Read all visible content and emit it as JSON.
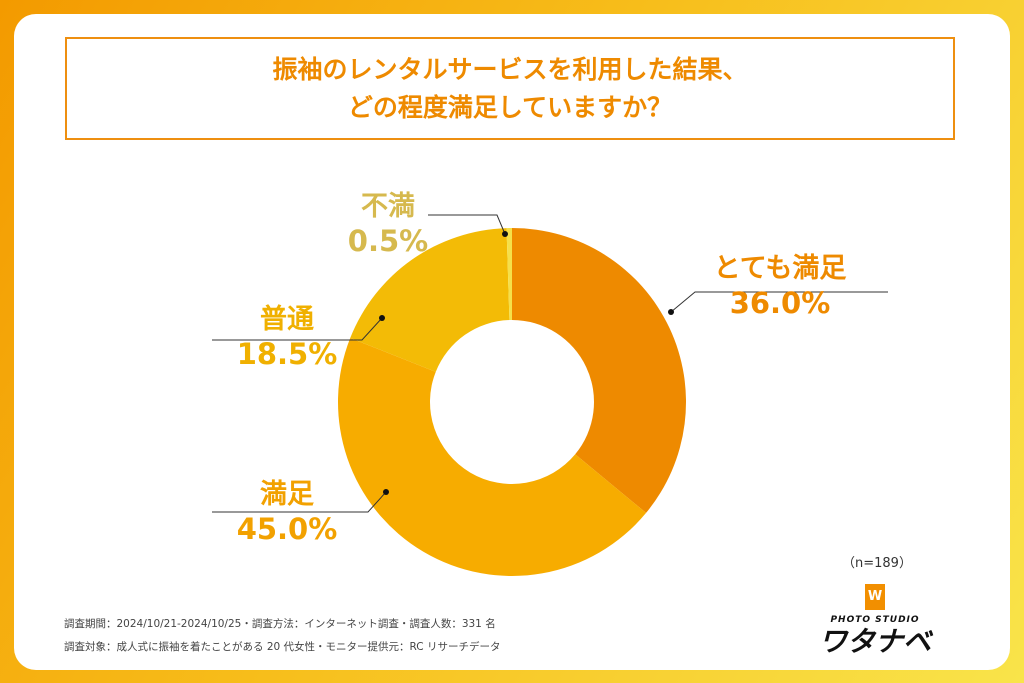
{
  "title_lines": [
    "振袖のレンタルサービスを利用した結果、",
    "どの程度満足していますか？"
  ],
  "chart_data": {
    "type": "pie",
    "donut": true,
    "title": "振袖のレンタルサービスを利用した結果、どの程度満足していますか？",
    "categories": [
      "とても満足",
      "満足",
      "普通",
      "不満"
    ],
    "values": [
      36.0,
      45.0,
      18.5,
      0.5
    ],
    "value_labels": [
      "36.0%",
      "45.0%",
      "18.5%",
      "0.5%"
    ],
    "colors": [
      "#ee8a00",
      "#f7ac00",
      "#f3bb06",
      "#f5e04a"
    ],
    "label_colors": [
      "#ee8a00",
      "#f2a100",
      "#f0b000",
      "#d6b94e"
    ],
    "start": "top",
    "direction": "clockwise"
  },
  "sample_size": "（n=189）",
  "footer": [
    "調査期間：2024/10/21-2024/10/25・調査方法：インターネット調査・調査人数：331 名",
    "調査対象：成人式に振袖を着たことがある 20 代女性・モニター提供元：RC リサーチデータ"
  ],
  "logo": {
    "mark": "W",
    "sub": "PHOTO STUDIO",
    "main": "ワタナベ"
  }
}
